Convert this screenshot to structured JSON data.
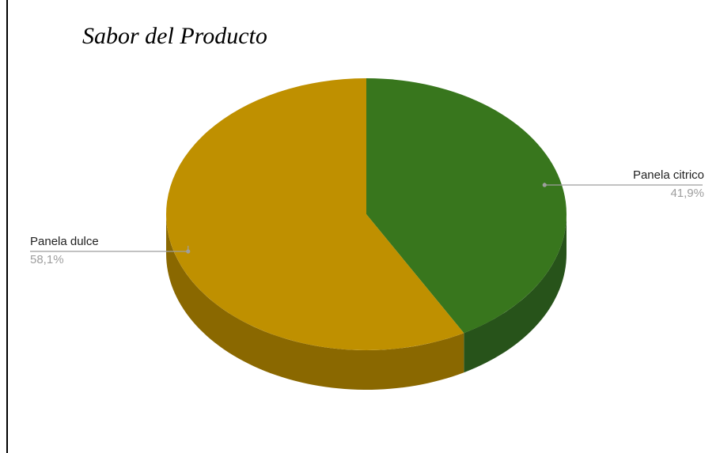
{
  "chart_data": {
    "type": "pie",
    "title": "Sabor del Producto",
    "style": "3d",
    "slices": [
      {
        "label": "Panela citrico",
        "value": 41.9,
        "value_text": "41,9%",
        "color": "#38761d",
        "side_color": "#27531a"
      },
      {
        "label": "Panela dulce",
        "value": 58.1,
        "value_text": "58,1%",
        "color": "#bf9000",
        "side_color": "#8a6800"
      }
    ]
  }
}
